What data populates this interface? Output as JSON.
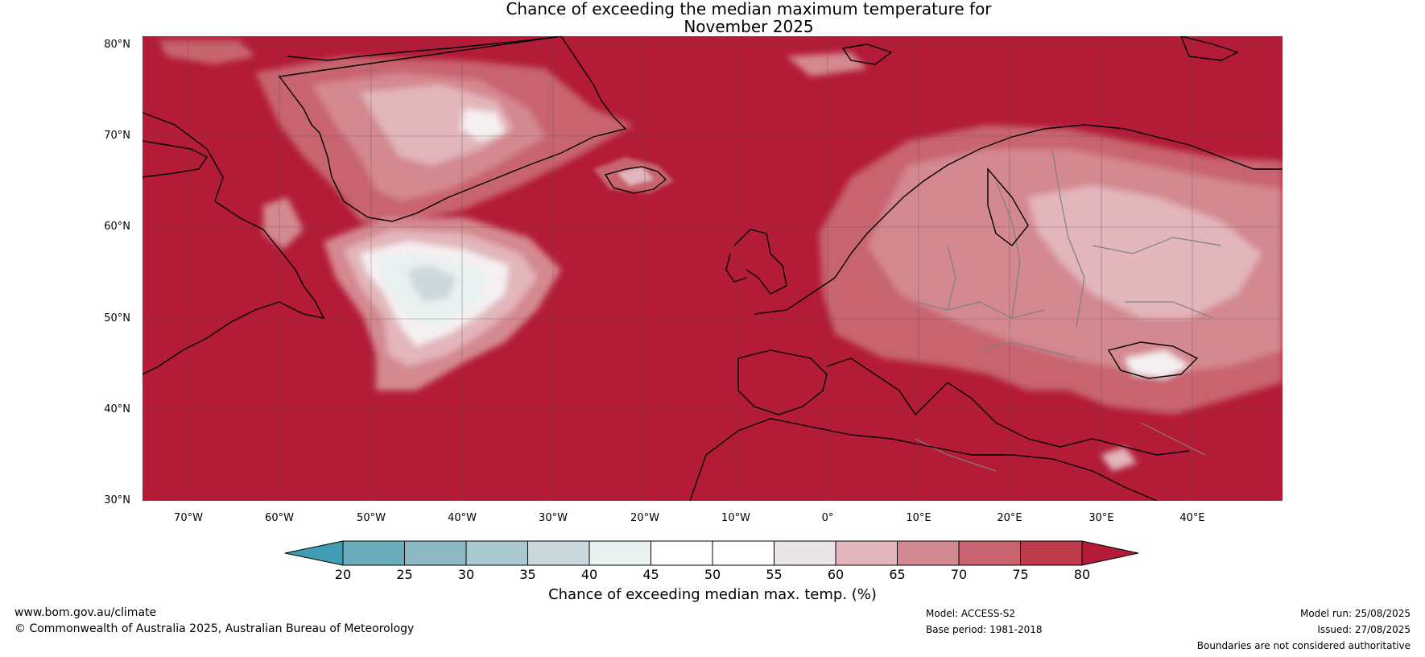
{
  "title": {
    "line1": "Chance of exceeding the median maximum temperature for",
    "line2": "November 2025"
  },
  "map": {
    "lat_labels": [
      "80°N",
      "70°N",
      "60°N",
      "50°N",
      "40°N",
      "30°N"
    ],
    "lon_labels": [
      "70°W",
      "60°W",
      "50°W",
      "40°W",
      "30°W",
      "20°W",
      "10°W",
      "0°",
      "10°E",
      "20°E",
      "30°E",
      "40°E"
    ],
    "region": "North Atlantic and Europe",
    "background_color": "#b31b37",
    "coastline_color": "#000000",
    "border_color": "#808080"
  },
  "colorbar": {
    "ticks": [
      "20",
      "25",
      "30",
      "35",
      "40",
      "45",
      "50",
      "55",
      "60",
      "65",
      "70",
      "75",
      "80"
    ],
    "colors": [
      "#3f9cb2",
      "#6cadbd",
      "#8db9c5",
      "#aac8cf",
      "#cbd8dd",
      "#e9f0f0",
      "#ffffff",
      "#ffffff",
      "#ebe4e6",
      "#e2b6bb",
      "#d48890",
      "#c8636f",
      "#bd3b4b",
      "#b31b37"
    ],
    "label": "Chance of exceeding median max. temp. (%)"
  },
  "footer": {
    "website": "www.bom.gov.au/climate",
    "copyright": "© Commonwealth of Australia 2025, Australian Bureau of Meteorology",
    "model": "Model: ACCESS-S2",
    "base_period": "Base period: 1981-2018",
    "model_run": "Model run: 25/08/2025",
    "issued": "Issued: 27/08/2025",
    "disclaimer": "Boundaries are not considered authoritative"
  }
}
